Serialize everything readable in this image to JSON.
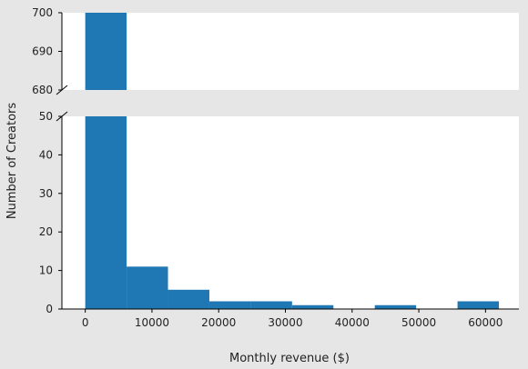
{
  "chart_data": {
    "type": "bar",
    "subtype": "histogram with broken y-axis",
    "xlabel": "Monthly revenue ($)",
    "ylabel": "Number of Creators",
    "bar_color": "#1f77b4",
    "bin_edges": [
      0,
      6200,
      12400,
      18600,
      24800,
      31000,
      37200,
      43400,
      49600,
      55800,
      62000
    ],
    "counts": [
      700,
      11,
      5,
      2,
      2,
      1,
      0,
      1,
      0,
      2
    ],
    "xlim": [
      -3500,
      65000
    ],
    "xticks": [
      0,
      10000,
      20000,
      30000,
      40000,
      50000,
      60000
    ],
    "xtick_labels": [
      "0",
      "10000",
      "20000",
      "30000",
      "40000",
      "50000",
      "60000"
    ],
    "panels": [
      {
        "name": "upper",
        "ylim": [
          680,
          700
        ],
        "yticks": [
          680,
          690,
          700
        ],
        "ytick_labels": [
          "680",
          "690",
          "700"
        ]
      },
      {
        "name": "lower",
        "ylim": [
          0,
          50
        ],
        "yticks": [
          0,
          10,
          20,
          30,
          40,
          50
        ],
        "ytick_labels": [
          "0",
          "10",
          "20",
          "30",
          "40",
          "50"
        ]
      }
    ]
  }
}
